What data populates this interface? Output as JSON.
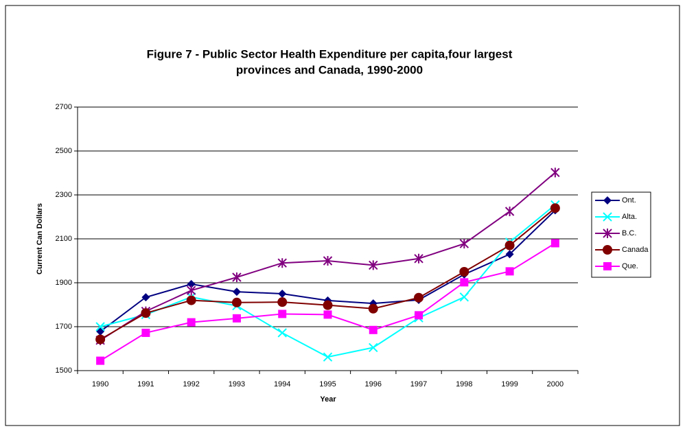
{
  "chart_data": {
    "type": "line",
    "title": [
      "Figure 7  - Public Sector Health Expenditure per capita,four largest",
      "provinces and Canada, 1990-2000"
    ],
    "x_label": "Year",
    "y_label": "Current Can Dollars",
    "categories": [
      "1990",
      "1991",
      "1992",
      "1993",
      "1994",
      "1995",
      "1996",
      "1997",
      "1998",
      "1999",
      "2000"
    ],
    "ylim": [
      1500,
      2700
    ],
    "yticks": [
      1500,
      1700,
      1900,
      2100,
      2300,
      2500,
      2700
    ],
    "grid": true,
    "legend": "right",
    "series": [
      {
        "name": "Ont.",
        "color": "#000080",
        "marker": "diamond",
        "values": [
          1678,
          1834,
          1894,
          1859,
          1850,
          1819,
          1806,
          1822,
          1938,
          2030,
          2230
        ]
      },
      {
        "name": "Alta.",
        "color": "#00ffff",
        "marker": "x",
        "values": [
          1700,
          1755,
          1835,
          1795,
          1672,
          1562,
          1605,
          1740,
          1835,
          2085,
          2255
        ]
      },
      {
        "name": "B.C.",
        "color": "#800080",
        "marker": "asterisk",
        "values": [
          1638,
          1770,
          1865,
          1925,
          1990,
          2000,
          1980,
          2010,
          2078,
          2225,
          2402
        ]
      },
      {
        "name": "Canada",
        "color": "#800000",
        "marker": "circle",
        "values": [
          1642,
          1762,
          1820,
          1810,
          1812,
          1798,
          1782,
          1832,
          1950,
          2070,
          2240
        ]
      },
      {
        "name": "Que.",
        "color": "#ff00ff",
        "marker": "square",
        "values": [
          1545,
          1672,
          1720,
          1738,
          1758,
          1755,
          1685,
          1752,
          1902,
          1952,
          2080
        ]
      }
    ]
  }
}
